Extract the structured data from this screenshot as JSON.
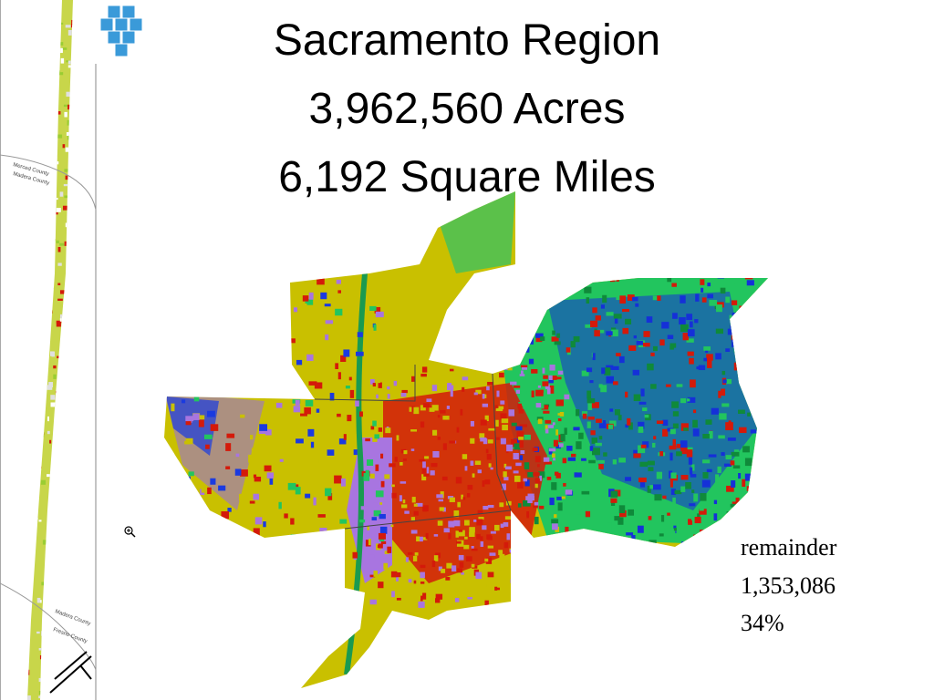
{
  "title": {
    "lines": [
      "Sacramento Region",
      "3,962,560 Acres",
      "6,192 Square Miles"
    ]
  },
  "annotation": {
    "lines": [
      "remainder",
      "1,353,086",
      "34%"
    ]
  },
  "strip_labels": [
    "Merced County",
    "Madera County",
    "Madera County",
    "Fresno County"
  ]
}
